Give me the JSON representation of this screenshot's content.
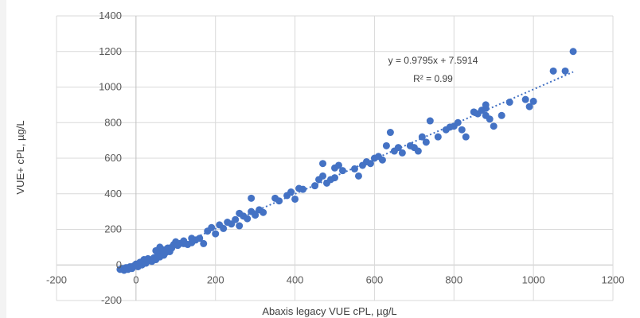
{
  "chart_data": {
    "type": "scatter",
    "title": "",
    "xlabel": "Abaxis legacy VUE cPL, µg/L",
    "ylabel": "VUE+ cPL, µg/L",
    "xlim": [
      -200,
      1200
    ],
    "ylim": [
      -200,
      1400
    ],
    "x_ticks": [
      "-200",
      "0",
      "200",
      "400",
      "600",
      "800",
      "1000",
      "1200"
    ],
    "y_ticks": [
      "-200",
      "0",
      "200",
      "400",
      "600",
      "800",
      "1000",
      "1200",
      "1400"
    ],
    "x_tick_values": [
      -200,
      0,
      200,
      400,
      600,
      800,
      1000,
      1200
    ],
    "y_tick_values": [
      -200,
      0,
      200,
      400,
      600,
      800,
      1000,
      1200,
      1400
    ],
    "grid": true,
    "point_color": "#4472c4",
    "trendline": {
      "slope": 0.9795,
      "intercept": 7.5914,
      "x_range": [
        -40,
        1100
      ],
      "color": "#4472c4",
      "equation": "y = 0.9795x + 7.5914",
      "r_squared": "R² = 0.99"
    },
    "points": [
      [
        -40,
        -25
      ],
      [
        -35,
        -20
      ],
      [
        -30,
        -30
      ],
      [
        -25,
        -15
      ],
      [
        -20,
        -25
      ],
      [
        -15,
        -10
      ],
      [
        -10,
        -20
      ],
      [
        -5,
        -5
      ],
      [
        0,
        5
      ],
      [
        5,
        -10
      ],
      [
        10,
        15
      ],
      [
        15,
        0
      ],
      [
        20,
        20
      ],
      [
        25,
        10
      ],
      [
        30,
        35
      ],
      [
        35,
        25
      ],
      [
        40,
        20
      ],
      [
        45,
        40
      ],
      [
        50,
        30
      ],
      [
        55,
        60
      ],
      [
        60,
        45
      ],
      [
        65,
        80
      ],
      [
        70,
        55
      ],
      [
        75,
        70
      ],
      [
        80,
        95
      ],
      [
        85,
        75
      ],
      [
        90,
        100
      ],
      [
        95,
        115
      ],
      [
        100,
        130
      ],
      [
        105,
        110
      ],
      [
        110,
        120
      ],
      [
        120,
        135
      ],
      [
        130,
        115
      ],
      [
        140,
        125
      ],
      [
        150,
        140
      ],
      [
        160,
        150
      ],
      [
        170,
        120
      ],
      [
        180,
        190
      ],
      [
        190,
        210
      ],
      [
        200,
        175
      ],
      [
        210,
        225
      ],
      [
        220,
        205
      ],
      [
        230,
        240
      ],
      [
        240,
        230
      ],
      [
        250,
        255
      ],
      [
        260,
        220
      ],
      [
        270,
        275
      ],
      [
        280,
        260
      ],
      [
        290,
        300
      ],
      [
        300,
        280
      ],
      [
        310,
        310
      ],
      [
        320,
        295
      ],
      [
        350,
        375
      ],
      [
        360,
        360
      ],
      [
        380,
        390
      ],
      [
        390,
        410
      ],
      [
        400,
        370
      ],
      [
        410,
        430
      ],
      [
        420,
        425
      ],
      [
        450,
        445
      ],
      [
        460,
        480
      ],
      [
        470,
        500
      ],
      [
        480,
        460
      ],
      [
        490,
        480
      ],
      [
        500,
        490
      ],
      [
        510,
        560
      ],
      [
        520,
        530
      ],
      [
        550,
        540
      ],
      [
        560,
        500
      ],
      [
        570,
        560
      ],
      [
        580,
        580
      ],
      [
        590,
        570
      ],
      [
        600,
        600
      ],
      [
        610,
        610
      ],
      [
        620,
        590
      ],
      [
        630,
        670
      ],
      [
        640,
        745
      ],
      [
        650,
        640
      ],
      [
        660,
        660
      ],
      [
        670,
        630
      ],
      [
        690,
        670
      ],
      [
        700,
        660
      ],
      [
        710,
        640
      ],
      [
        720,
        720
      ],
      [
        730,
        690
      ],
      [
        740,
        810
      ],
      [
        760,
        720
      ],
      [
        780,
        760
      ],
      [
        790,
        775
      ],
      [
        800,
        780
      ],
      [
        810,
        800
      ],
      [
        820,
        760
      ],
      [
        830,
        720
      ],
      [
        850,
        860
      ],
      [
        860,
        850
      ],
      [
        870,
        870
      ],
      [
        880,
        880
      ],
      [
        890,
        820
      ],
      [
        900,
        780
      ],
      [
        920,
        840
      ],
      [
        940,
        915
      ],
      [
        980,
        930
      ],
      [
        990,
        890
      ],
      [
        1000,
        920
      ],
      [
        1050,
        1090
      ],
      [
        1080,
        1090
      ],
      [
        1100,
        1200
      ],
      [
        290,
        375
      ],
      [
        470,
        570
      ],
      [
        500,
        545
      ],
      [
        60,
        100
      ],
      [
        70,
        85
      ],
      [
        90,
        95
      ],
      [
        140,
        150
      ],
      [
        260,
        290
      ],
      [
        880,
        900
      ],
      [
        880,
        840
      ],
      [
        50,
        80
      ],
      [
        20,
        30
      ],
      [
        120,
        120
      ]
    ]
  }
}
